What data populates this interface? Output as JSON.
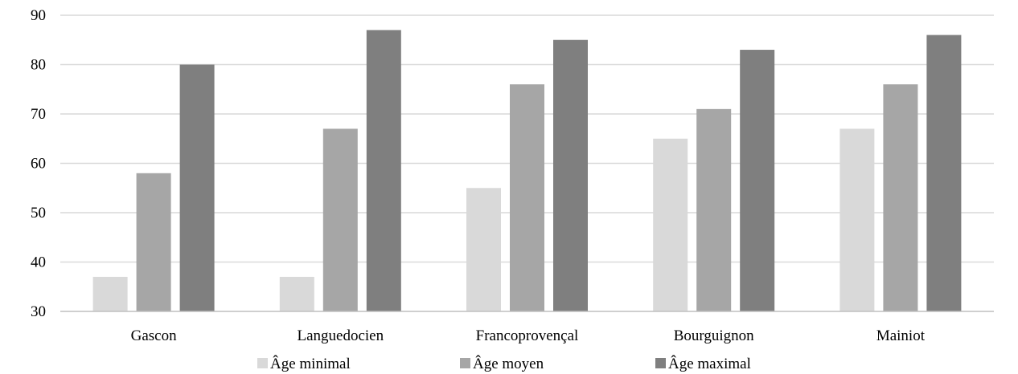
{
  "chart_data": {
    "type": "bar",
    "title": "",
    "xlabel": "",
    "ylabel": "",
    "ylim": [
      30,
      90
    ],
    "yticks": [
      30,
      40,
      50,
      60,
      70,
      80,
      90
    ],
    "grid": true,
    "legend_position": "bottom",
    "categories": [
      "Gascon",
      "Languedocien",
      "Francoprovençal",
      "Bourguignon",
      "Mainiot"
    ],
    "series": [
      {
        "name": "Âge minimal",
        "color": "#d9d9d9",
        "values": [
          37,
          37,
          55,
          65,
          67
        ]
      },
      {
        "name": "Âge moyen",
        "color": "#a6a6a6",
        "values": [
          58,
          67,
          76,
          71,
          76
        ]
      },
      {
        "name": "Âge maximal",
        "color": "#7f7f7f",
        "values": [
          80,
          87,
          85,
          83,
          86
        ]
      }
    ]
  }
}
